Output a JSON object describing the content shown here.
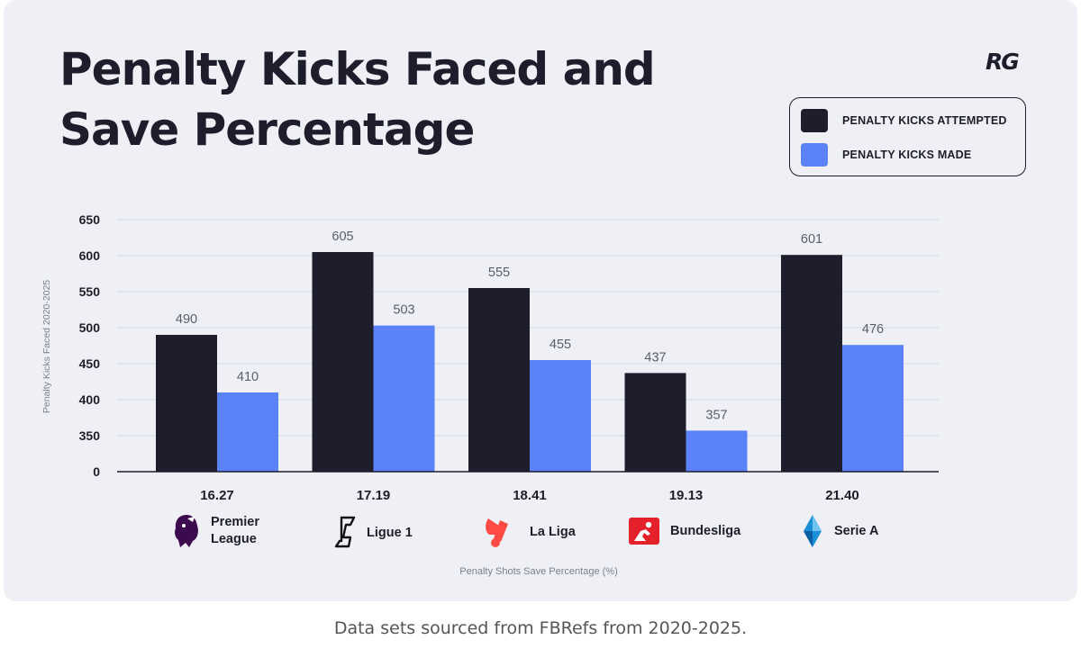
{
  "title": {
    "line1": "Penalty Kicks Faced and",
    "line2": "Save Percentage"
  },
  "logo": "RG",
  "legend": [
    {
      "label": "PENALTY KICKS ATTEMPTED",
      "color": "#1d1d2c"
    },
    {
      "label": "PENALTY KICKS MADE",
      "color": "#5b82f8"
    }
  ],
  "leagues": [
    {
      "name": "Premier League",
      "icon": "premier-league-lion-icon"
    },
    {
      "name": "Ligue 1",
      "icon": "ligue-1-logo-icon"
    },
    {
      "name": "La Liga",
      "icon": "la-liga-logo-icon"
    },
    {
      "name": "Bundesliga",
      "icon": "bundesliga-logo-icon"
    },
    {
      "name": "Serie A",
      "icon": "serie-a-shield-icon"
    }
  ],
  "caption": "Data sets sourced from FBRefs from 2020-2025.",
  "chart_data": {
    "type": "bar",
    "title": "Penalty Kicks Faced and Save Percentage",
    "categories": [
      "16.27",
      "17.19",
      "18.41",
      "19.13",
      "21.40"
    ],
    "series": [
      {
        "name": "PENALTY KICKS ATTEMPTED",
        "values": [
          490,
          605,
          555,
          437,
          601
        ],
        "color": "#1d1d2c"
      },
      {
        "name": "PENALTY KICKS MADE",
        "values": [
          410,
          503,
          455,
          357,
          476
        ],
        "color": "#5b82f8"
      }
    ],
    "xlabel": "Penalty Shots Save Percentage (%)",
    "ylabel": "Penalty Kicks Faced 2020-2025",
    "yticks": [
      0,
      350,
      400,
      450,
      500,
      550,
      600,
      650
    ],
    "ylim": [
      300,
      650
    ],
    "axis_break": "0 shown at baseline; axis runs 300-650",
    "grid": true,
    "legend_position": "top-right"
  }
}
